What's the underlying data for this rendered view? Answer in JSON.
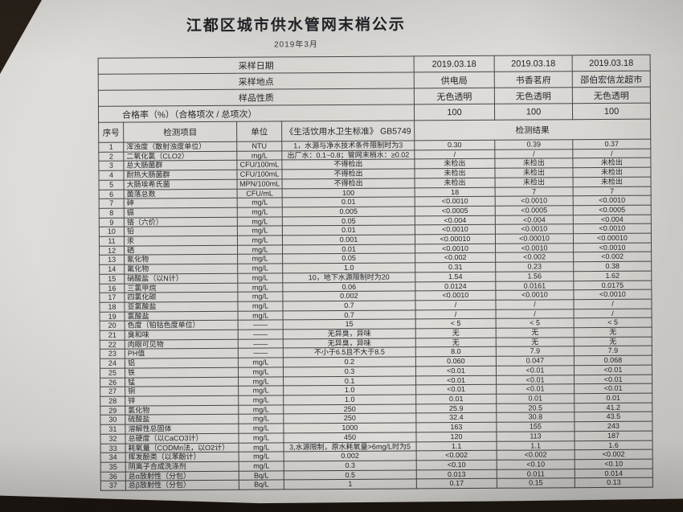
{
  "page": {
    "title": "江都区城市供水管网末梢公示",
    "subtitle": "2019年3月"
  },
  "colors": {
    "paper": "#dad7d2",
    "ink": "#26262b",
    "desk": "#241c15",
    "table_border": "#45454b"
  },
  "info_rows": [
    {
      "label": "采样日期",
      "values": [
        "2019.03.18",
        "2019.03.18",
        "2019.03.18"
      ]
    },
    {
      "label": "采样地点",
      "values": [
        "供电局",
        "书香茗府",
        "邵伯宏信龙超市"
      ]
    },
    {
      "label": "样品性质",
      "values": [
        "无色透明",
        "无色透明",
        "无色透明"
      ]
    },
    {
      "label": "合格率（%）（合格项次 / 总项次）",
      "values": [
        "100",
        "100",
        "100"
      ]
    }
  ],
  "columns": {
    "no": "序号",
    "item": "检测项目",
    "unit": "单位",
    "standard": "《生活饮用水卫生标准》 GB5749",
    "results": "检测结果"
  },
  "rows": [
    {
      "no": "1",
      "item": "浑浊度（散射浊度单位）",
      "unit": "NTU",
      "standard": "1，水源与净水技术条件限制时为3",
      "results": [
        "0.30",
        "0.39",
        "0.37"
      ]
    },
    {
      "no": "2",
      "item": "二氧化氯（CLO2）",
      "unit": "mg/L",
      "standard": "出厂水：0.1~0.8；管网末梢水：≥0.02",
      "results": [
        "/",
        "/",
        "/"
      ]
    },
    {
      "no": "3",
      "item": "总大肠菌群",
      "unit": "CFU/100mL",
      "standard": "不得检出",
      "results": [
        "未检出",
        "未检出",
        "未检出"
      ]
    },
    {
      "no": "4",
      "item": "耐热大肠菌群",
      "unit": "CFU/100mL",
      "standard": "不得检出",
      "results": [
        "未检出",
        "未检出",
        "未检出"
      ]
    },
    {
      "no": "5",
      "item": "大肠埃希氏菌",
      "unit": "MPN/100mL",
      "standard": "不得检出",
      "results": [
        "未检出",
        "未检出",
        "未检出"
      ]
    },
    {
      "no": "6",
      "item": "菌落总数",
      "unit": "CFU/mL",
      "standard": "100",
      "results": [
        "18",
        "7",
        "7"
      ]
    },
    {
      "no": "7",
      "item": "砷",
      "unit": "mg/L",
      "standard": "0.01",
      "results": [
        "<0.0010",
        "<0.0010",
        "<0.0010"
      ]
    },
    {
      "no": "8",
      "item": "镉",
      "unit": "mg/L",
      "standard": "0.005",
      "results": [
        "<0.0005",
        "<0.0005",
        "<0.0005"
      ]
    },
    {
      "no": "9",
      "item": "铬（六价）",
      "unit": "mg/L",
      "standard": "0.05",
      "results": [
        "<0.004",
        "<0.004",
        "<0.004"
      ]
    },
    {
      "no": "10",
      "item": "铅",
      "unit": "mg/L",
      "standard": "0.01",
      "results": [
        "<0.0010",
        "<0.0010",
        "<0.0010"
      ]
    },
    {
      "no": "11",
      "item": "汞",
      "unit": "mg/L",
      "standard": "0.001",
      "results": [
        "<0.00010",
        "<0.00010",
        "<0.00010"
      ]
    },
    {
      "no": "12",
      "item": "硒",
      "unit": "mg/L",
      "standard": "0.01",
      "results": [
        "<0.0010",
        "<0.0010",
        "<0.0010"
      ]
    },
    {
      "no": "13",
      "item": "氰化物",
      "unit": "mg/L",
      "standard": "0.05",
      "results": [
        "<0.002",
        "<0.002",
        "<0.002"
      ]
    },
    {
      "no": "14",
      "item": "氟化物",
      "unit": "mg/L",
      "standard": "1.0",
      "results": [
        "0.31",
        "0.23",
        "0.38"
      ]
    },
    {
      "no": "15",
      "item": "硝酸盐（以N计）",
      "unit": "mg/L",
      "standard": "10，地下水源限制时为20",
      "results": [
        "1.54",
        "1.56",
        "1.62"
      ]
    },
    {
      "no": "16",
      "item": "三氯甲烷",
      "unit": "mg/L",
      "standard": "0.06",
      "results": [
        "0.0124",
        "0.0161",
        "0.0175"
      ]
    },
    {
      "no": "17",
      "item": "四氯化碳",
      "unit": "mg/L",
      "standard": "0.002",
      "results": [
        "<0.0010",
        "<0.0010",
        "<0.0010"
      ]
    },
    {
      "no": "18",
      "item": "亚氯酸盐",
      "unit": "mg/L",
      "standard": "0.7",
      "results": [
        "/",
        "/",
        "/"
      ]
    },
    {
      "no": "19",
      "item": "氯酸盐",
      "unit": "mg/L",
      "standard": "0.7",
      "results": [
        "/",
        "/",
        "/"
      ]
    },
    {
      "no": "20",
      "item": "色度（铂钴色度单位）",
      "unit": "——",
      "standard": "15",
      "results": [
        "< 5",
        "< 5",
        "< 5"
      ]
    },
    {
      "no": "21",
      "item": "臭和味",
      "unit": "——",
      "standard": "无异臭，异味",
      "results": [
        "无",
        "无",
        "无"
      ]
    },
    {
      "no": "22",
      "item": "肉眼可见物",
      "unit": "——",
      "standard": "无异臭，异味",
      "results": [
        "无",
        "无",
        "无"
      ]
    },
    {
      "no": "23",
      "item": "PH值",
      "unit": "——",
      "standard": "不小于6.5且不大于8.5",
      "results": [
        "8.0",
        "7.9",
        "7.9"
      ]
    },
    {
      "no": "24",
      "item": "铝",
      "unit": "mg/L",
      "standard": "0.2",
      "results": [
        "0.060",
        "0.047",
        "0.068"
      ]
    },
    {
      "no": "25",
      "item": "铁",
      "unit": "mg/L",
      "standard": "0.3",
      "results": [
        "<0.01",
        "<0.01",
        "<0.01"
      ]
    },
    {
      "no": "26",
      "item": "锰",
      "unit": "mg/L",
      "standard": "0.1",
      "results": [
        "<0.01",
        "<0.01",
        "<0.01"
      ]
    },
    {
      "no": "27",
      "item": "铜",
      "unit": "mg/L",
      "standard": "1.0",
      "results": [
        "<0.01",
        "<0.01",
        "<0.01"
      ]
    },
    {
      "no": "28",
      "item": "锌",
      "unit": "mg/L",
      "standard": "1.0",
      "results": [
        "0.01",
        "0.01",
        "0.01"
      ]
    },
    {
      "no": "29",
      "item": "氯化物",
      "unit": "mg/L",
      "standard": "250",
      "results": [
        "25.9",
        "20.5",
        "41.2"
      ]
    },
    {
      "no": "30",
      "item": "硫酸盐",
      "unit": "mg/L",
      "standard": "250",
      "results": [
        "32.4",
        "30.8",
        "43.5"
      ]
    },
    {
      "no": "31",
      "item": "溶解性总固体",
      "unit": "mg/L",
      "standard": "1000",
      "results": [
        "163",
        "155",
        "243"
      ]
    },
    {
      "no": "32",
      "item": "总硬度（以CaCO3计）",
      "unit": "mg/L",
      "standard": "450",
      "results": [
        "120",
        "113",
        "187"
      ]
    },
    {
      "no": "33",
      "item": "耗氧量（CODMn法，以O2计）",
      "unit": "mg/L",
      "standard": "3,水源限制，原水耗氧量>6mg/L时为5",
      "results": [
        "1.1",
        "1.1",
        "1.6"
      ]
    },
    {
      "no": "34",
      "item": "挥发酚类（以苯酚计）",
      "unit": "mg/L",
      "standard": "0.002",
      "results": [
        "<0.002",
        "<0.002",
        "<0.002"
      ]
    },
    {
      "no": "35",
      "item": "阴离子合成洗涤剂",
      "unit": "mg/L",
      "standard": "0.3",
      "results": [
        "<0.10",
        "<0.10",
        "<0.10"
      ]
    },
    {
      "no": "36",
      "item": "总α放射性（分包）",
      "unit": "Bq/L",
      "standard": "0.5",
      "results": [
        "0.013",
        "0.011",
        "0.014"
      ]
    },
    {
      "no": "37",
      "item": "总β放射性（分包）",
      "unit": "Bq/L",
      "standard": "1",
      "results": [
        "0.17",
        "0.15",
        "0.13"
      ]
    }
  ]
}
